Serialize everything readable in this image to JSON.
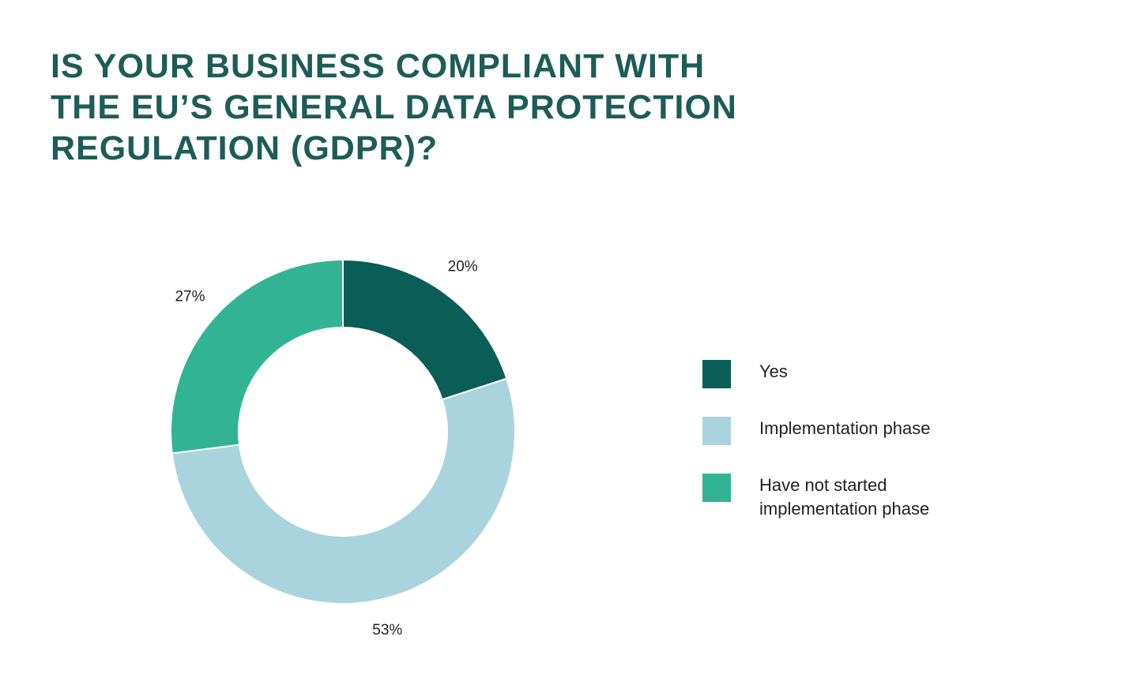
{
  "chart_data": {
    "type": "pie",
    "title": "IS YOUR BUSINESS COMPLIANT WITH THE EU’S GENERAL DATA PROTECTION REGULATION (GDPR)?",
    "categories": [
      "Yes",
      "Implementation phase",
      "Have not started implementation phase"
    ],
    "values": [
      20,
      53,
      27
    ],
    "value_labels": [
      "20%",
      "53%",
      "27%"
    ],
    "colors": [
      "#0b5e57",
      "#a9d4de",
      "#32b494"
    ]
  }
}
